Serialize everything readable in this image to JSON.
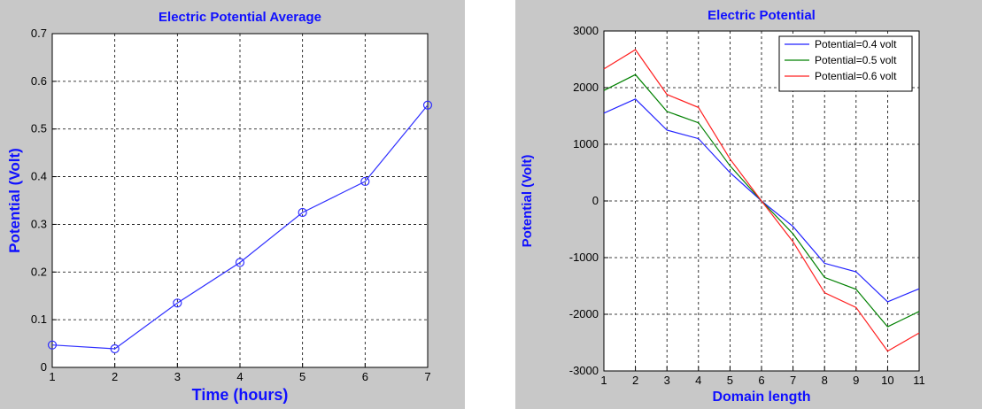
{
  "chart_data": [
    {
      "type": "line",
      "title": "Electric Potential Average",
      "xlabel": "Time (hours)",
      "ylabel": "Potential (Volt)",
      "xlim": [
        1,
        7
      ],
      "ylim": [
        0,
        0.7
      ],
      "xticks": [
        1,
        2,
        3,
        4,
        5,
        6,
        7
      ],
      "yticks": [
        0,
        0.1,
        0.2,
        0.3,
        0.4,
        0.5,
        0.6,
        0.7
      ],
      "grid": true,
      "series": [
        {
          "color": "#3030ff",
          "marker": "circle",
          "x": [
            1,
            2,
            3,
            4,
            5,
            6,
            7
          ],
          "y": [
            0.047,
            0.039,
            0.135,
            0.22,
            0.325,
            0.39,
            0.55
          ]
        }
      ]
    },
    {
      "type": "line",
      "title": "Electric Potential",
      "xlabel": "Domain length",
      "ylabel": "Potential (Volt)",
      "xlim": [
        1,
        11
      ],
      "ylim": [
        -3000,
        3000
      ],
      "xticks": [
        1,
        2,
        3,
        4,
        5,
        6,
        7,
        8,
        9,
        10,
        11
      ],
      "yticks": [
        -3000,
        -2000,
        -1000,
        0,
        1000,
        2000,
        3000
      ],
      "grid": true,
      "legend": "top-right",
      "series": [
        {
          "name": "Potential=0.4 volt",
          "color": "#2020ff",
          "x": [
            1,
            2,
            3,
            4,
            5,
            6,
            7,
            8,
            9,
            10,
            11
          ],
          "y": [
            1550,
            1800,
            1250,
            1100,
            500,
            0,
            -450,
            -1100,
            -1250,
            -1780,
            -1550
          ]
        },
        {
          "name": "Potential=0.5 volt",
          "color": "#008000",
          "x": [
            1,
            2,
            3,
            4,
            5,
            6,
            7,
            8,
            9,
            10,
            11
          ],
          "y": [
            1950,
            2230,
            1580,
            1380,
            620,
            0,
            -580,
            -1350,
            -1560,
            -2220,
            -1950
          ]
        },
        {
          "name": "Potential=0.6 volt",
          "color": "#ff2020",
          "x": [
            1,
            2,
            3,
            4,
            5,
            6,
            7,
            8,
            9,
            10,
            11
          ],
          "y": [
            2330,
            2670,
            1880,
            1650,
            740,
            0,
            -720,
            -1620,
            -1880,
            -2650,
            -2330
          ]
        }
      ]
    }
  ]
}
